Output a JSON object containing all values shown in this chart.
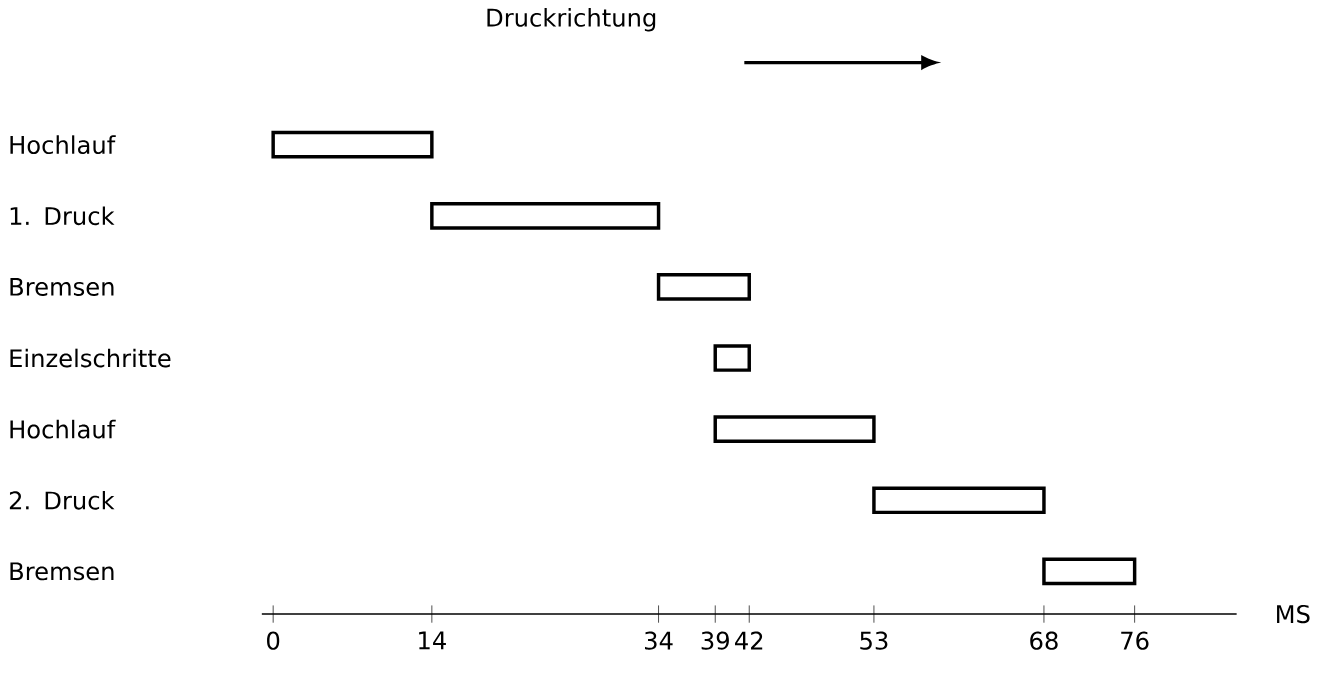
{
  "chart_data": {
    "type": "bar",
    "orientation": "horizontal",
    "title": "Druckrichtung",
    "xlabel": "MS",
    "categories": [
      "Hochlauf",
      "1. Druck",
      "Bremsen",
      "Einzelschritte",
      "Hochlauf",
      "2. Druck",
      "Bremsen"
    ],
    "base": [
      0,
      14,
      34,
      39,
      39,
      53,
      68
    ],
    "values": [
      14,
      20,
      8,
      3,
      14,
      15,
      8
    ],
    "color": "#000000",
    "xlim": [
      -1,
      85
    ],
    "xticks": [
      0,
      14,
      34,
      39,
      42,
      53,
      68,
      76
    ],
    "grid": false
  }
}
